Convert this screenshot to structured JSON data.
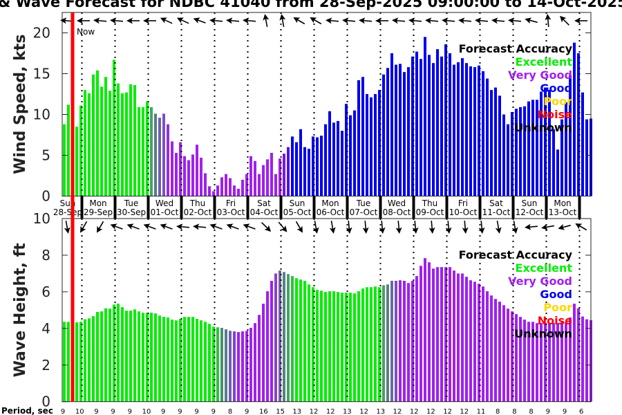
{
  "title": "& Wave Forecast for NDBC 41040 from 28-Sep-2025 09:00:00 to 14-Oct-2025",
  "now_label": "Now",
  "period_label": "Period, sec",
  "legend": {
    "title": "Forecast Accuracy",
    "items": [
      {
        "label": "Excellent",
        "color": "#00ee00"
      },
      {
        "label": "Very Good",
        "color": "#a020f0"
      },
      {
        "label": "Good",
        "color": "#0000f0"
      },
      {
        "label": "Poor",
        "color": "#ffd700"
      },
      {
        "label": "Noise",
        "color": "#ff0000"
      },
      {
        "label": "Unknown",
        "color": "#000000"
      }
    ]
  },
  "days": [
    {
      "dow": "Sun",
      "date": "28-Sep"
    },
    {
      "dow": "Mon",
      "date": "29-Sep"
    },
    {
      "dow": "Tue",
      "date": "30-Sep"
    },
    {
      "dow": "Wed",
      "date": "01-Oct"
    },
    {
      "dow": "Thu",
      "date": "02-Oct"
    },
    {
      "dow": "Fri",
      "date": "03-Oct"
    },
    {
      "dow": "Sat",
      "date": "04-Oct"
    },
    {
      "dow": "Sun",
      "date": "05-Oct"
    },
    {
      "dow": "Mon",
      "date": "06-Oct"
    },
    {
      "dow": "Tue",
      "date": "07-Oct"
    },
    {
      "dow": "Wed",
      "date": "08-Oct"
    },
    {
      "dow": "Thu",
      "date": "09-Oct"
    },
    {
      "dow": "Fri",
      "date": "10-Oct"
    },
    {
      "dow": "Sat",
      "date": "11-Oct"
    },
    {
      "dow": "Sun",
      "date": "12-Oct"
    },
    {
      "dow": "Mon",
      "date": "13-Oct"
    }
  ],
  "periods": [
    9,
    10,
    9,
    9,
    9,
    10,
    9,
    9,
    9,
    9,
    8,
    9,
    16,
    15,
    13,
    12,
    12,
    13,
    12,
    13,
    12,
    12,
    12,
    12,
    12,
    11,
    8,
    8,
    8,
    9,
    9,
    6
  ],
  "chart_data": [
    {
      "type": "bar",
      "title": "Wind Speed",
      "ylabel": "Wind Speed, kts",
      "ylim": [
        0,
        22.5
      ],
      "yticks": [
        0,
        5,
        10,
        15,
        20
      ],
      "x_step_hours": 3,
      "now_index": 2,
      "values": [
        8.8,
        11.2,
        10.0,
        8.5,
        11.1,
        13.0,
        12.6,
        14.9,
        15.4,
        13.4,
        14.6,
        12.9,
        16.7,
        13.8,
        12.6,
        12.7,
        13.7,
        13.6,
        10.9,
        10.9,
        11.6,
        10.9,
        10.1,
        9.6,
        10.1,
        8.8,
        6.7,
        5.3,
        6.6,
        4.9,
        4.4,
        5.1,
        6.3,
        4.7,
        2.8,
        1.2,
        0.6,
        1.3,
        2.3,
        2.7,
        2.2,
        1.3,
        0.9,
        2.0,
        2.7,
        4.9,
        4.3,
        2.7,
        3.8,
        4.5,
        5.3,
        2.7,
        4.6,
        5.2,
        6.0,
        7.3,
        6.6,
        8.2,
        6.0,
        5.8,
        7.3,
        7.2,
        7.4,
        8.8,
        10.4,
        9.0,
        9.2,
        8.0,
        11.3,
        9.9,
        10.5,
        14.2,
        14.6,
        12.5,
        12.1,
        12.5,
        13.0,
        14.9,
        15.7,
        17.5,
        16.1,
        16.2,
        15.2,
        15.8,
        17.1,
        17.7,
        16.8,
        19.5,
        17.3,
        16.3,
        18.0,
        17.1,
        18.6,
        17.5,
        16.1,
        16.4,
        16.9,
        16.3,
        15.9,
        15.8,
        16.0,
        15.3,
        14.4,
        13.0,
        13.3,
        12.3,
        10.0,
        8.8,
        10.3,
        10.7,
        10.9,
        11.0,
        11.6,
        11.8,
        11.8,
        12.8,
        13.3,
        13.0,
        8.2,
        5.7,
        9.4,
        11.5,
        14.8,
        18.8,
        17.5,
        12.7,
        9.4,
        9.5
      ],
      "color_segments": [
        {
          "from": 0,
          "to": 20,
          "color": "#00ee00"
        },
        {
          "from": 21,
          "to": 21,
          "color": "#40a860"
        },
        {
          "from": 22,
          "to": 22,
          "color": "#5a7a8a"
        },
        {
          "from": 23,
          "to": 23,
          "color": "#6a60b0"
        },
        {
          "from": 24,
          "to": 24,
          "color": "#7a50c8"
        },
        {
          "from": 25,
          "to": 25,
          "color": "#9030e0"
        },
        {
          "from": 26,
          "to": 52,
          "color": "#a020f0"
        },
        {
          "from": 53,
          "to": 53,
          "color": "#7018f0"
        },
        {
          "from": 54,
          "to": 54,
          "color": "#5010f0"
        },
        {
          "from": 55,
          "to": 127,
          "color": "#0000f0"
        }
      ],
      "direction_arrows_deg": [
        175,
        180,
        175,
        175,
        180,
        180,
        155,
        155,
        160,
        175,
        175,
        175,
        100,
        100,
        150,
        150,
        175,
        175,
        175,
        180,
        175,
        175,
        175,
        175,
        175,
        175,
        175,
        175,
        165,
        95,
        135,
        180
      ]
    },
    {
      "type": "bar",
      "title": "Wave Height",
      "ylabel": "Wave Height, ft",
      "ylim": [
        0,
        10
      ],
      "yticks": [
        0,
        2,
        4,
        6,
        8,
        10
      ],
      "x_step_hours": 3,
      "now_index": 2,
      "values": [
        4.36,
        4.36,
        4.35,
        4.33,
        4.36,
        4.5,
        4.55,
        4.67,
        4.9,
        4.93,
        5.1,
        5.08,
        5.3,
        5.35,
        5.16,
        4.97,
        4.97,
        5.04,
        4.93,
        4.86,
        4.86,
        4.86,
        4.82,
        4.7,
        4.63,
        4.6,
        4.48,
        4.44,
        4.52,
        4.63,
        4.63,
        4.63,
        4.52,
        4.44,
        4.36,
        4.25,
        4.1,
        4.06,
        4.03,
        3.95,
        3.87,
        3.84,
        3.8,
        3.84,
        3.87,
        4.03,
        4.29,
        4.74,
        5.35,
        6.03,
        6.6,
        7.0,
        7.16,
        7.08,
        6.97,
        6.86,
        6.74,
        6.67,
        6.6,
        6.4,
        6.25,
        6.1,
        6.06,
        5.99,
        6.03,
        6.03,
        5.99,
        5.95,
        5.95,
        5.95,
        5.91,
        6.03,
        6.18,
        6.25,
        6.25,
        6.29,
        6.25,
        6.36,
        6.4,
        6.6,
        6.6,
        6.63,
        6.6,
        6.48,
        6.6,
        6.86,
        7.42,
        7.84,
        7.61,
        7.27,
        7.35,
        7.35,
        7.35,
        7.35,
        7.16,
        7.0,
        7.0,
        6.82,
        6.63,
        6.55,
        6.44,
        6.29,
        6.03,
        5.8,
        5.61,
        5.46,
        5.27,
        5.08,
        4.93,
        4.78,
        4.63,
        4.48,
        4.36,
        4.36,
        4.29,
        4.3,
        4.3,
        4.3,
        4.3,
        4.3,
        4.35,
        4.33,
        4.6,
        5.35,
        5.1,
        4.65,
        4.5,
        4.45
      ],
      "color_segments": [
        {
          "from": 0,
          "to": 36,
          "color": "#00ee00"
        },
        {
          "from": 37,
          "to": 37,
          "color": "#30c040"
        },
        {
          "from": 38,
          "to": 38,
          "color": "#4a9070"
        },
        {
          "from": 39,
          "to": 39,
          "color": "#5a7a90"
        },
        {
          "from": 40,
          "to": 40,
          "color": "#6a60b0"
        },
        {
          "from": 41,
          "to": 41,
          "color": "#8040d0"
        },
        {
          "from": 42,
          "to": 50,
          "color": "#a020f0"
        },
        {
          "from": 51,
          "to": 51,
          "color": "#8a40d0"
        },
        {
          "from": 52,
          "to": 52,
          "color": "#7060a0"
        },
        {
          "from": 53,
          "to": 53,
          "color": "#5a8080"
        },
        {
          "from": 54,
          "to": 54,
          "color": "#48a068"
        },
        {
          "from": 55,
          "to": 55,
          "color": "#30c040"
        },
        {
          "from": 56,
          "to": 76,
          "color": "#00ee00"
        },
        {
          "from": 77,
          "to": 77,
          "color": "#4aa060"
        },
        {
          "from": 78,
          "to": 78,
          "color": "#5a8080"
        },
        {
          "from": 79,
          "to": 79,
          "color": "#6a6aa0"
        },
        {
          "from": 80,
          "to": 80,
          "color": "#7a50c0"
        },
        {
          "from": 81,
          "to": 127,
          "color": "#a020f0"
        }
      ],
      "direction_arrows_deg": [
        -80,
        -120,
        -120,
        160,
        160,
        160,
        160,
        175,
        175,
        160,
        160,
        160,
        -45,
        -50,
        -60,
        -80,
        -80,
        -85,
        -85,
        -85,
        -85,
        -85,
        -85,
        -85,
        -85,
        -85,
        -80,
        -80,
        185,
        190,
        195,
        150
      ]
    }
  ]
}
